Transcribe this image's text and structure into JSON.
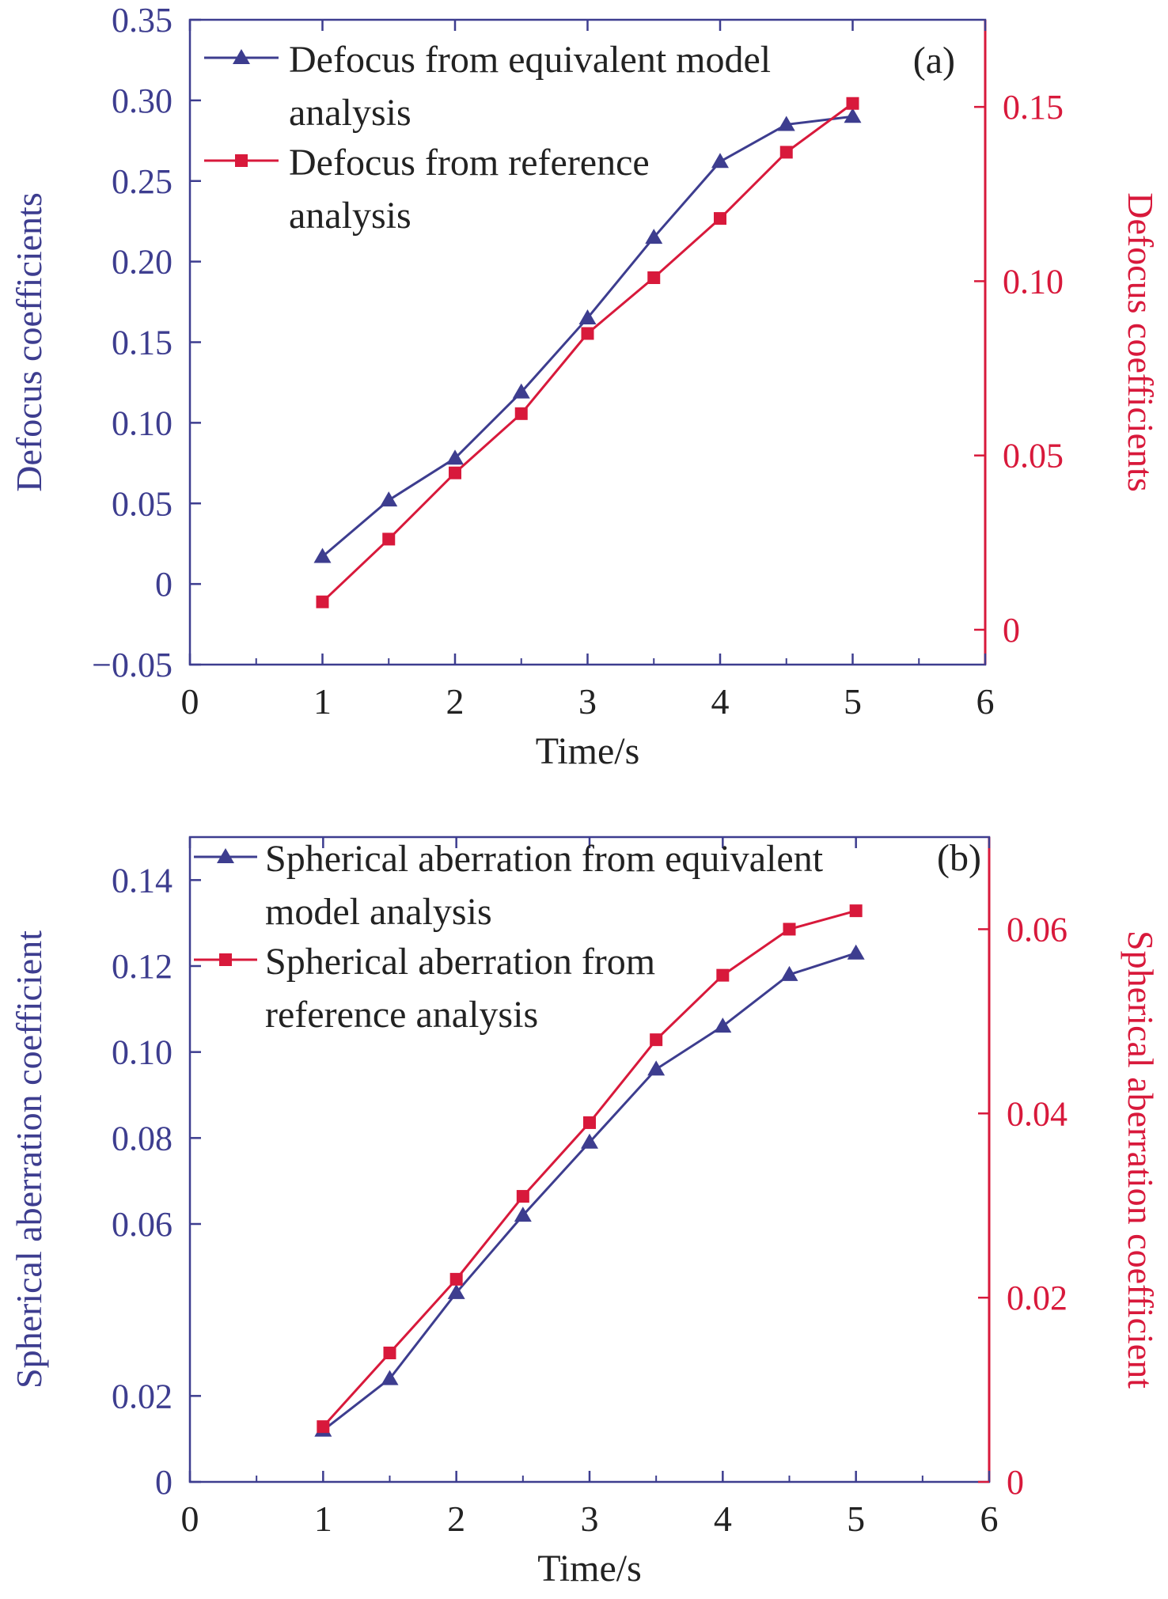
{
  "colors": {
    "left_axis": "#3d3d8f",
    "right_axis": "#d8193b",
    "series_equivalent": "#3d3d8f",
    "series_reference": "#d8193b",
    "axis_frame": "#3d3d8f",
    "text_dark": "#222222"
  },
  "chart_data": [
    {
      "type": "line",
      "panel_label": "(a)",
      "xlabel": "Time/s",
      "ylabel_left": "Defocus coefficients",
      "ylabel_right": "Defocus coefficients",
      "xlim": [
        0,
        6
      ],
      "ylim_left": [
        -0.05,
        0.35
      ],
      "ylim_right": [
        -0.01,
        0.175
      ],
      "x_ticks": [
        "0",
        "1",
        "2",
        "3",
        "4",
        "5",
        "6"
      ],
      "y_ticks_left": [
        "0.35",
        "0.30",
        "0.25",
        "0.20",
        "0.15",
        "0.10",
        "0.05",
        "0",
        "−0.05"
      ],
      "y_ticks_right": [
        "0.15",
        "0.10",
        "0.05",
        "0"
      ],
      "legend_position": "top-left",
      "series": [
        {
          "name_lines": [
            "Defocus from equivalent model",
            "analysis"
          ],
          "axis": "left",
          "marker": "triangle",
          "x": [
            1,
            1.5,
            2,
            2.5,
            3,
            3.5,
            4,
            4.5,
            5
          ],
          "y": [
            0.017,
            0.052,
            0.078,
            0.119,
            0.165,
            0.215,
            0.262,
            0.285,
            0.29
          ]
        },
        {
          "name_lines": [
            "Defocus from reference",
            "analysis"
          ],
          "axis": "right",
          "marker": "square",
          "x": [
            1,
            1.5,
            2,
            2.5,
            3,
            3.5,
            4,
            4.5,
            5
          ],
          "y": [
            0.008,
            0.026,
            0.045,
            0.062,
            0.085,
            0.101,
            0.118,
            0.137,
            0.151
          ]
        }
      ]
    },
    {
      "type": "line",
      "panel_label": "(b)",
      "xlabel": "Time/s",
      "ylabel_left": "Spherical aberration coefficient",
      "ylabel_right": "Spherical aberration coefficient",
      "xlim": [
        0,
        6
      ],
      "ylim_left": [
        0,
        0.15
      ],
      "ylim_right": [
        0,
        0.07
      ],
      "x_ticks": [
        "0",
        "1",
        "2",
        "3",
        "4",
        "5",
        "6"
      ],
      "y_ticks_left": [
        "0.14",
        "0.12",
        "0.10",
        "0.08",
        "0.06",
        "0.02",
        "0"
      ],
      "y_ticks_right": [
        "0.06",
        "0.04",
        "0.02",
        "0"
      ],
      "legend_position": "top-left",
      "series": [
        {
          "name_lines": [
            "Spherical aberration from equivalent",
            "model analysis"
          ],
          "axis": "left",
          "marker": "triangle",
          "x": [
            1,
            1.5,
            2,
            2.5,
            3,
            3.5,
            4,
            4.5,
            5
          ],
          "y": [
            0.012,
            0.024,
            0.044,
            0.062,
            0.079,
            0.096,
            0.106,
            0.118,
            0.123
          ]
        },
        {
          "name_lines": [
            "Spherical aberration from",
            "reference analysis"
          ],
          "axis": "right",
          "marker": "square",
          "x": [
            1,
            1.5,
            2,
            2.5,
            3,
            3.5,
            4,
            4.5,
            5
          ],
          "y": [
            0.006,
            0.014,
            0.022,
            0.031,
            0.039,
            0.048,
            0.055,
            0.06,
            0.062
          ]
        }
      ]
    }
  ]
}
